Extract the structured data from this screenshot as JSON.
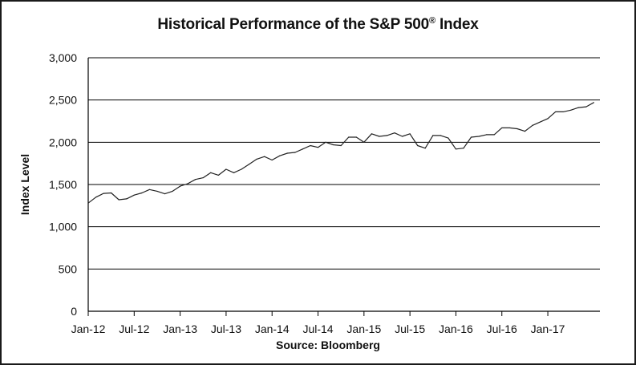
{
  "chart_data": {
    "type": "line",
    "title": "Historical Performance of the S&P 500",
    "title_mark": "®",
    "title_suffix": " Index",
    "xlabel": "Source:  Bloomberg",
    "ylabel": "Index Level",
    "ylim": [
      0,
      3000
    ],
    "yticks": [
      0,
      500,
      1000,
      1500,
      2000,
      2500,
      3000
    ],
    "ytick_labels": [
      "0",
      "500",
      "1,000",
      "1,500",
      "2,000",
      "2,500",
      "3,000"
    ],
    "xlim": [
      "2012-01",
      "2017-07"
    ],
    "xticks": [
      "2012-01",
      "2012-07",
      "2013-01",
      "2013-07",
      "2014-01",
      "2014-07",
      "2015-01",
      "2015-07",
      "2016-01",
      "2016-07",
      "2017-01"
    ],
    "xtick_labels": [
      "Jan-12",
      "Jul-12",
      "Jan-13",
      "Jul-13",
      "Jan-14",
      "Jul-14",
      "Jan-15",
      "Jul-15",
      "Jan-16",
      "Jul-16",
      "Jan-17"
    ],
    "grid": "horizontal",
    "legend": "none",
    "line_color": "#222222",
    "series": [
      {
        "x": [
          "2012-01",
          "2012-02",
          "2012-03",
          "2012-04",
          "2012-05",
          "2012-06",
          "2012-07",
          "2012-08",
          "2012-09",
          "2012-10",
          "2012-11",
          "2012-12",
          "2013-01",
          "2013-02",
          "2013-03",
          "2013-04",
          "2013-05",
          "2013-06",
          "2013-07",
          "2013-08",
          "2013-09",
          "2013-10",
          "2013-11",
          "2013-12",
          "2014-01",
          "2014-02",
          "2014-03",
          "2014-04",
          "2014-05",
          "2014-06",
          "2014-07",
          "2014-08",
          "2014-09",
          "2014-10",
          "2014-11",
          "2014-12",
          "2015-01",
          "2015-02",
          "2015-03",
          "2015-04",
          "2015-05",
          "2015-06",
          "2015-07",
          "2015-08",
          "2015-09",
          "2015-10",
          "2015-11",
          "2015-12",
          "2016-01",
          "2016-02",
          "2016-03",
          "2016-04",
          "2016-05",
          "2016-06",
          "2016-07",
          "2016-08",
          "2016-09",
          "2016-10",
          "2016-11",
          "2016-12",
          "2017-01",
          "2017-02",
          "2017-03",
          "2017-04",
          "2017-05",
          "2017-06",
          "2017-07"
        ],
        "values": [
          1280,
          1350,
          1395,
          1400,
          1320,
          1330,
          1375,
          1400,
          1440,
          1420,
          1390,
          1420,
          1480,
          1510,
          1560,
          1580,
          1640,
          1610,
          1680,
          1640,
          1680,
          1740,
          1800,
          1830,
          1790,
          1840,
          1870,
          1880,
          1920,
          1960,
          1940,
          2000,
          1970,
          1960,
          2060,
          2060,
          2000,
          2100,
          2070,
          2080,
          2110,
          2070,
          2100,
          1960,
          1930,
          2080,
          2080,
          2050,
          1920,
          1930,
          2060,
          2070,
          2090,
          2090,
          2170,
          2170,
          2160,
          2130,
          2200,
          2240,
          2280,
          2360,
          2360,
          2380,
          2410,
          2420,
          2470
        ]
      }
    ]
  }
}
